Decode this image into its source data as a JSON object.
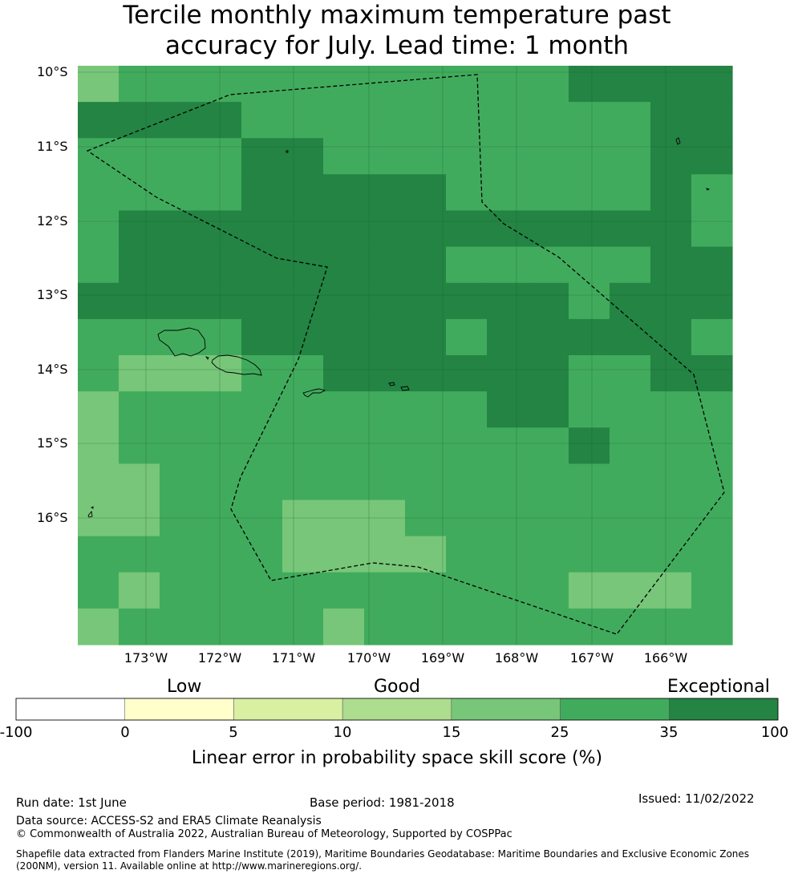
{
  "title": {
    "line1": "Tercile monthly maximum temperature past",
    "line2": "accuracy for July. Lead time: 1 month"
  },
  "map": {
    "lat_labels": [
      "10°S",
      "11°S",
      "12°S",
      "13°S",
      "14°S",
      "15°S",
      "16°S"
    ],
    "lon_labels": [
      "173°W",
      "172°W",
      "171°W",
      "170°W",
      "169°W",
      "168°W",
      "167°W",
      "166°W"
    ],
    "colors": {
      "g35": "#78c679",
      "g25": "#41ab5d",
      "g100": "#238443"
    },
    "grid_categories": [
      [
        1,
        2,
        2,
        2,
        2,
        2,
        2,
        2,
        2,
        2,
        2,
        2,
        3,
        3,
        3,
        3
      ],
      [
        3,
        3,
        3,
        3,
        2,
        2,
        2,
        2,
        2,
        2,
        2,
        2,
        2,
        2,
        3,
        3
      ],
      [
        2,
        2,
        2,
        2,
        3,
        3,
        2,
        2,
        2,
        2,
        2,
        2,
        2,
        2,
        3,
        3
      ],
      [
        2,
        2,
        2,
        2,
        3,
        3,
        3,
        3,
        3,
        2,
        2,
        2,
        2,
        2,
        3,
        2
      ],
      [
        2,
        3,
        3,
        3,
        3,
        3,
        3,
        3,
        3,
        3,
        3,
        3,
        3,
        3,
        3,
        2
      ],
      [
        2,
        3,
        3,
        3,
        3,
        3,
        3,
        3,
        3,
        2,
        2,
        2,
        2,
        2,
        3,
        3
      ],
      [
        3,
        3,
        3,
        3,
        3,
        3,
        3,
        3,
        3,
        3,
        3,
        3,
        2,
        3,
        3,
        3
      ],
      [
        2,
        2,
        2,
        2,
        3,
        3,
        3,
        3,
        3,
        2,
        3,
        3,
        3,
        3,
        3,
        2
      ],
      [
        2,
        1,
        1,
        1,
        2,
        2,
        3,
        3,
        3,
        3,
        3,
        3,
        2,
        2,
        3,
        3
      ],
      [
        1,
        2,
        2,
        2,
        2,
        2,
        2,
        2,
        2,
        2,
        3,
        3,
        2,
        2,
        2,
        2
      ],
      [
        1,
        2,
        2,
        2,
        2,
        2,
        2,
        2,
        2,
        2,
        2,
        2,
        3,
        2,
        2,
        2
      ],
      [
        1,
        1,
        2,
        2,
        2,
        2,
        2,
        2,
        2,
        2,
        2,
        2,
        2,
        2,
        2,
        2
      ],
      [
        1,
        1,
        2,
        2,
        2,
        1,
        1,
        1,
        2,
        2,
        2,
        2,
        2,
        2,
        2,
        2
      ],
      [
        2,
        2,
        2,
        2,
        2,
        1,
        1,
        1,
        1,
        2,
        2,
        2,
        2,
        2,
        2,
        2
      ],
      [
        2,
        1,
        2,
        2,
        2,
        2,
        2,
        2,
        2,
        2,
        2,
        2,
        1,
        1,
        1,
        2
      ],
      [
        1,
        2,
        2,
        2,
        2,
        2,
        1,
        2,
        2,
        2,
        2,
        2,
        2,
        2,
        2,
        2
      ]
    ]
  },
  "legend": {
    "categories": [
      "Low",
      "Good",
      "Exceptional"
    ],
    "ticks": [
      "-100",
      "0",
      "5",
      "10",
      "15",
      "25",
      "35",
      "100"
    ],
    "colors": [
      "#ffffff",
      "#ffffcc",
      "#d9f0a3",
      "#addd8e",
      "#78c679",
      "#41ab5d",
      "#238443"
    ],
    "title": "Linear error in probability space skill score (%)"
  },
  "footer": {
    "run_date": "Run date: 1st June",
    "base_period": "Base period: 1981-2018",
    "issued": "Issued: 11/02/2022",
    "data_source": "Data source: ACCESS-S2 and ERA5 Climate Reanalysis",
    "copyright": "© Commonwealth of Australia 2022, Australian Bureau of Meteorology, Supported by COSPPac",
    "shapefile_1": "Shapefile data extracted from Flanders Marine Institute (2019), Maritime Boundaries Geodatabase: Maritime Boundaries and Exclusive Economic Zones",
    "shapefile_2": "(200NM), version 11. Available online at http://www.marineregions.org/."
  }
}
